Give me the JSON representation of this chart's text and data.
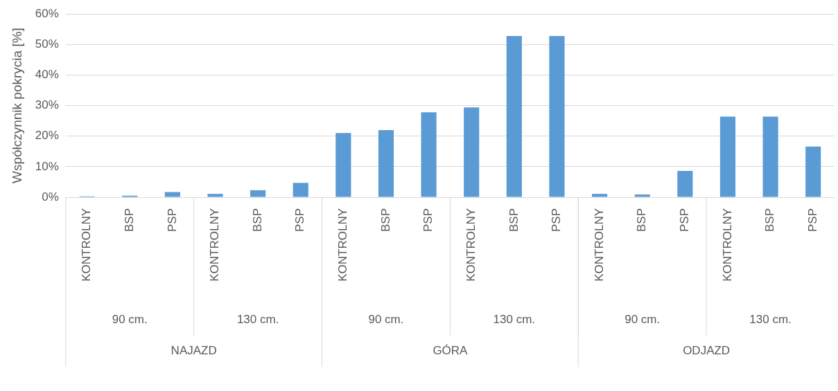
{
  "chart_data": {
    "type": "bar",
    "ylabel": "Współczynnik pokrycia [%]",
    "categories": [
      "KONTROLNY",
      "BSP",
      "PSP",
      "KONTROLNY",
      "BSP",
      "PSP",
      "KONTROLNY",
      "BSP",
      "PSP",
      "KONTROLNY",
      "BSP",
      "PSP",
      "KONTROLNY",
      "BSP",
      "PSP",
      "KONTROLNY",
      "BSP",
      "PSP"
    ],
    "values": [
      0.3,
      0.5,
      1.7,
      1.1,
      2.3,
      4.7,
      21.0,
      22.0,
      27.8,
      29.4,
      52.8,
      52.8,
      1.1,
      0.9,
      8.6,
      26.4,
      26.4,
      16.6
    ],
    "color": "#5b9bd5",
    "ylim": [
      0,
      60
    ],
    "yticks": [
      {
        "value": 0,
        "label": "0%"
      },
      {
        "value": 10,
        "label": "10%"
      },
      {
        "value": 20,
        "label": "20%"
      },
      {
        "value": 30,
        "label": "30%"
      },
      {
        "value": 40,
        "label": "40%"
      },
      {
        "value": 50,
        "label": "50%"
      },
      {
        "value": 60,
        "label": "60%"
      }
    ],
    "grid": "y",
    "annotations": [
      "90 cm.",
      "130 cm.",
      "90 cm.",
      "130 cm.",
      "90 cm.",
      "130 cm.",
      "NAJAZD",
      "GÓRA",
      "ODJAZD"
    ]
  }
}
